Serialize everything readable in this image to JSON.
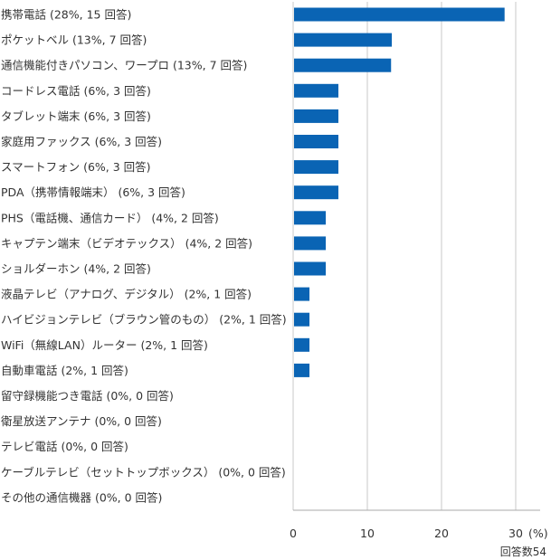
{
  "chart_data": {
    "type": "bar",
    "orientation": "horizontal",
    "categories": [
      "携帯電話 (28%, 15 回答)",
      "ポケットベル (13%, 7 回答)",
      "通信機能付きパソコン、ワープロ (13%, 7 回答)",
      "コードレス電話 (6%, 3 回答)",
      "タブレット端末 (6%, 3 回答)",
      "家庭用ファックス (6%, 3 回答)",
      "スマートフォン (6%, 3 回答)",
      "PDA（携帯情報端末） (6%, 3 回答)",
      "PHS（電話機、通信カード） (4%, 2 回答)",
      "キャプテン端末（ビデオテックス） (4%, 2 回答)",
      "ショルダーホン (4%, 2 回答)",
      "液晶テレビ（アナログ、デジタル） (2%, 1 回答)",
      "ハイビジョンテレビ（ブラウン管のもの） (2%, 1 回答)",
      "WiFi（無線LAN）ルーター (2%, 1 回答)",
      "自動車電話 (2%, 1 回答)",
      "留守録機能つき電話 (0%, 0 回答)",
      "衛星放送アンテナ (0%, 0 回答)",
      "テレビ電話 (0%, 0 回答)",
      "ケーブルテレビ（セットトップボックス） (0%, 0 回答)",
      "その他の通信機器 (0%, 0 回答)"
    ],
    "values": [
      28.5,
      13.3,
      13.2,
      6.1,
      6.1,
      6.1,
      6.1,
      6.1,
      4.4,
      4.4,
      4.4,
      2.2,
      2.2,
      2.2,
      2.2,
      0,
      0,
      0,
      0,
      0
    ],
    "xlim": [
      0,
      30
    ],
    "ticks": [
      0,
      10,
      20,
      30
    ],
    "tick_labels": [
      "0",
      "10",
      "20",
      "30"
    ],
    "unit_label": "(%)",
    "note": "回答数54",
    "grid": "vertical",
    "bar_color": "#0a64b4",
    "grid_color": "#c8c8c8"
  }
}
